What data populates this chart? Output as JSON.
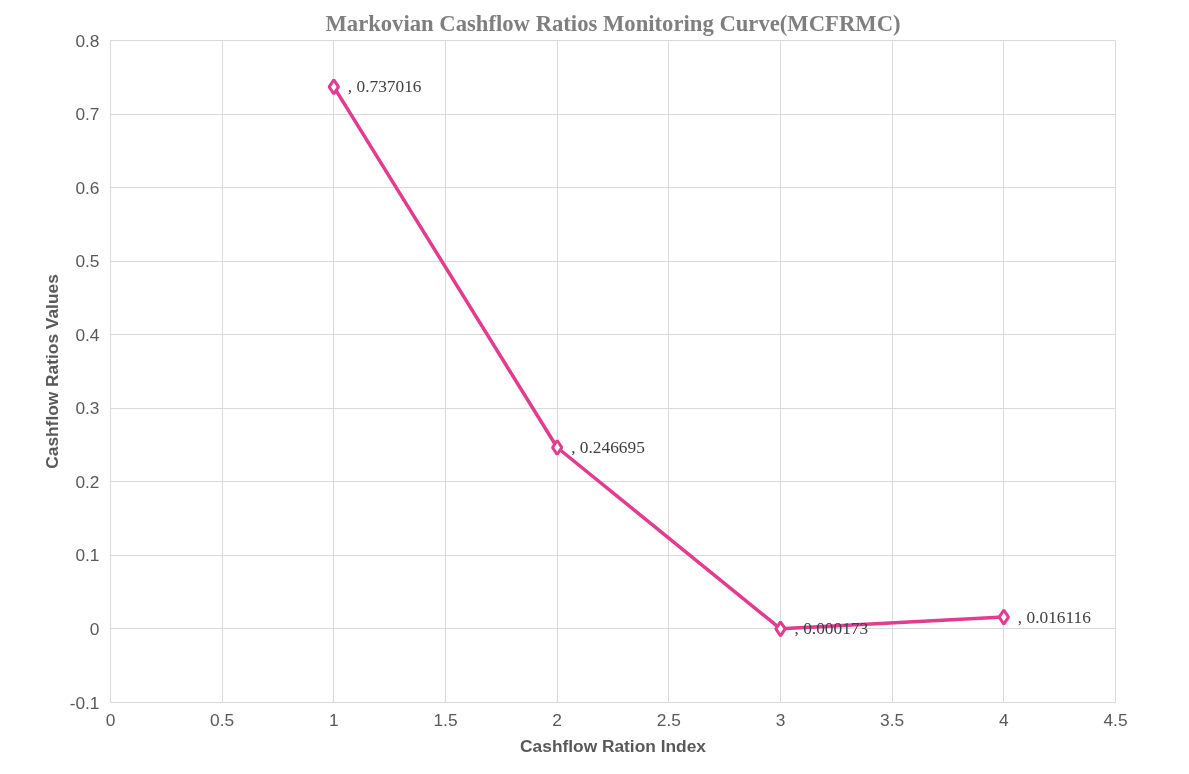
{
  "chart_data": {
    "type": "line",
    "title": "Markovian Cashflow Ratios Monitoring Curve(MCFRMC)",
    "xlabel": "Cashflow Ration Index",
    "ylabel": "Cashflow Ratios Values",
    "x": [
      1,
      2,
      3,
      4
    ],
    "series": [
      {
        "color": "#e23b8f",
        "values": [
          0.737016,
          0.246695,
          0.000173,
          0.016116
        ],
        "value_labels": [
          ", 0.737016",
          ", 0.246695",
          ", 0.000173",
          ", 0.016116"
        ]
      }
    ],
    "xlim": [
      0,
      4.5
    ],
    "xticks": [
      0,
      0.5,
      1,
      1.5,
      2,
      2.5,
      3,
      3.5,
      4,
      4.5
    ],
    "ylim": [
      -0.1,
      0.8
    ],
    "yticks": [
      -0.1,
      0,
      0.1,
      0.2,
      0.3,
      0.4,
      0.5,
      0.6,
      0.7,
      0.8
    ],
    "grid": true,
    "marker": "diamond",
    "line_style": "solid"
  }
}
